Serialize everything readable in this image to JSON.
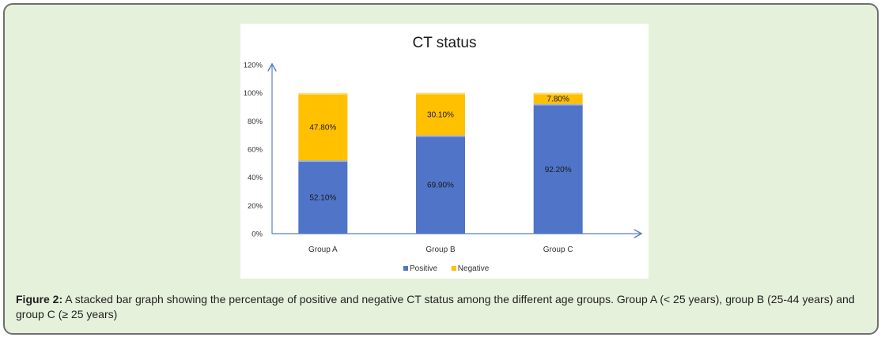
{
  "chart_data": {
    "type": "bar",
    "stacked": true,
    "title": "CT status",
    "categories": [
      "Group A",
      "Group B",
      "Group C"
    ],
    "series": [
      {
        "name": "Positive",
        "values": [
          52.1,
          69.9,
          92.2
        ],
        "labels": [
          "52.10%",
          "69.90%",
          "92.20%"
        ],
        "color": "#4f74c8"
      },
      {
        "name": "Negative",
        "values": [
          47.8,
          30.1,
          7.8
        ],
        "labels": [
          "47.80%",
          "30.10%",
          "7.80%"
        ],
        "color": "#ffc000"
      }
    ],
    "yticks": [
      0,
      20,
      40,
      60,
      80,
      100,
      120
    ],
    "ytick_labels": [
      "0%",
      "20%",
      "40%",
      "60%",
      "80%",
      "100%",
      "120%"
    ],
    "ylim": [
      0,
      120
    ],
    "legend_position": "bottom",
    "grid": false
  },
  "caption": {
    "label": "Figure 2:",
    "text": " A stacked bar graph showing the percentage of positive and negative CT status among the different age groups. Group A (< 25 years), group B (25-44 years) and group C (≥ 25 years)"
  }
}
